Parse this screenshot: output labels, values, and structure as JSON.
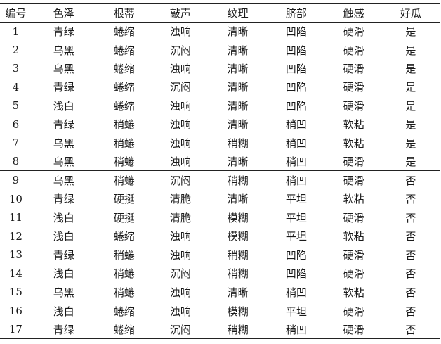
{
  "headers": [
    "编号",
    "色泽",
    "根蒂",
    "敲声",
    "纹理",
    "脐部",
    "触感",
    "好瓜"
  ],
  "rows_good": [
    [
      "1",
      "青绿",
      "蜷缩",
      "浊响",
      "清晰",
      "凹陷",
      "硬滑",
      "是"
    ],
    [
      "2",
      "乌黑",
      "蜷缩",
      "沉闷",
      "清晰",
      "凹陷",
      "硬滑",
      "是"
    ],
    [
      "3",
      "乌黑",
      "蜷缩",
      "浊响",
      "清晰",
      "凹陷",
      "硬滑",
      "是"
    ],
    [
      "4",
      "青绿",
      "蜷缩",
      "沉闷",
      "清晰",
      "凹陷",
      "硬滑",
      "是"
    ],
    [
      "5",
      "浅白",
      "蜷缩",
      "浊响",
      "清晰",
      "凹陷",
      "硬滑",
      "是"
    ],
    [
      "6",
      "青绿",
      "稍蜷",
      "浊响",
      "清晰",
      "稍凹",
      "软粘",
      "是"
    ],
    [
      "7",
      "乌黑",
      "稍蜷",
      "浊响",
      "稍糊",
      "稍凹",
      "软粘",
      "是"
    ],
    [
      "8",
      "乌黑",
      "稍蜷",
      "浊响",
      "清晰",
      "稍凹",
      "硬滑",
      "是"
    ]
  ],
  "rows_bad": [
    [
      "9",
      "乌黑",
      "稍蜷",
      "沉闷",
      "稍糊",
      "稍凹",
      "硬滑",
      "否"
    ],
    [
      "10",
      "青绿",
      "硬挺",
      "清脆",
      "清晰",
      "平坦",
      "软粘",
      "否"
    ],
    [
      "11",
      "浅白",
      "硬挺",
      "清脆",
      "模糊",
      "平坦",
      "硬滑",
      "否"
    ],
    [
      "12",
      "浅白",
      "蜷缩",
      "浊响",
      "模糊",
      "平坦",
      "软粘",
      "否"
    ],
    [
      "13",
      "青绿",
      "稍蜷",
      "浊响",
      "稍糊",
      "凹陷",
      "硬滑",
      "否"
    ],
    [
      "14",
      "浅白",
      "稍蜷",
      "沉闷",
      "稍糊",
      "凹陷",
      "硬滑",
      "否"
    ],
    [
      "15",
      "乌黑",
      "稍蜷",
      "浊响",
      "清晰",
      "稍凹",
      "软粘",
      "否"
    ],
    [
      "16",
      "浅白",
      "蜷缩",
      "浊响",
      "模糊",
      "平坦",
      "硬滑",
      "否"
    ],
    [
      "17",
      "青绿",
      "蜷缩",
      "沉闷",
      "稍糊",
      "稍凹",
      "硬滑",
      "否"
    ]
  ]
}
